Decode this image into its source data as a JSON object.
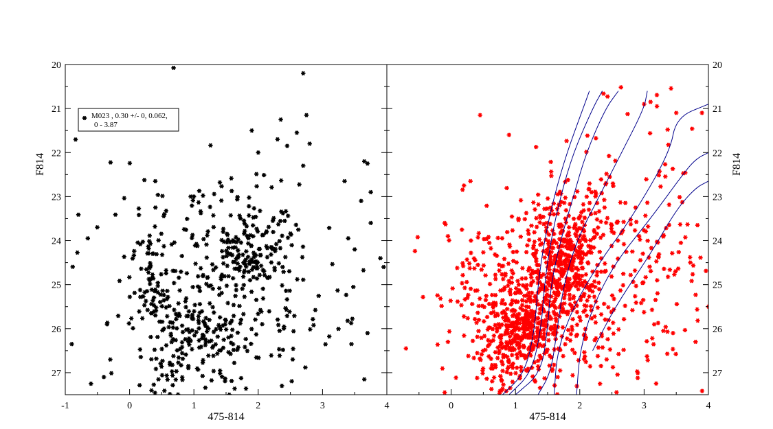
{
  "chart_data": [
    {
      "type": "scatter",
      "panel": "left",
      "xlabel": "475-814",
      "ylabel": "F814",
      "xlim": [
        -1,
        4
      ],
      "ylim": [
        27.5,
        20
      ],
      "y_inverted": true,
      "xticks": [
        "-1",
        "0",
        "1",
        "2",
        "3",
        "4"
      ],
      "yticks": [
        "20",
        "21",
        "22",
        "23",
        "24",
        "25",
        "26",
        "27"
      ],
      "marker_color": "#000000",
      "legend": {
        "position": "top-left",
        "line1": "M023  , 0.30 +/- 0, 0.062,",
        "line2": "0 - 3.87"
      },
      "highlight_points": [
        {
          "x": 2.7,
          "y": 20.2
        },
        {
          "x": 2.75,
          "y": 21.15
        },
        {
          "x": 2.35,
          "y": 21.25
        },
        {
          "x": 1.9,
          "y": 21.5
        },
        {
          "x": 2.6,
          "y": 21.55
        },
        {
          "x": 2.3,
          "y": 21.7
        },
        {
          "x": 2.8,
          "y": 21.8
        },
        {
          "x": 2.0,
          "y": 22.0
        },
        {
          "x": 2.45,
          "y": 21.85
        },
        {
          "x": 2.7,
          "y": 22.3
        },
        {
          "x": 3.65,
          "y": 22.2
        },
        {
          "x": 3.7,
          "y": 22.25
        },
        {
          "x": 0.4,
          "y": 22.65
        },
        {
          "x": 0.95,
          "y": 23.0
        },
        {
          "x": 1.0,
          "y": 23.0
        },
        {
          "x": 3.6,
          "y": 23.1
        },
        {
          "x": 3.75,
          "y": 22.9
        },
        {
          "x": 3.75,
          "y": 23.6
        },
        {
          "x": -0.65,
          "y": 23.95
        },
        {
          "x": 3.4,
          "y": 23.95
        },
        {
          "x": 3.5,
          "y": 24.2
        },
        {
          "x": 3.9,
          "y": 24.4
        },
        {
          "x": 3.95,
          "y": 24.6
        },
        {
          "x": 2.2,
          "y": 24.15
        },
        {
          "x": -0.9,
          "y": 26.35
        },
        {
          "x": -0.6,
          "y": 27.25
        },
        {
          "x": -0.4,
          "y": 27.1
        },
        {
          "x": -0.35,
          "y": 25.9
        },
        {
          "x": -0.3,
          "y": 26.7
        },
        {
          "x": 3.65,
          "y": 27.15
        },
        {
          "x": 3.45,
          "y": 26.35
        },
        {
          "x": 3.7,
          "y": 26.1
        },
        {
          "x": 1.55,
          "y": 27.5
        }
      ],
      "clusters": [
        {
          "cx": 1.85,
          "cy": 24.4,
          "sx": 0.2,
          "sy": 0.3,
          "n": 70
        },
        {
          "cx": 0.85,
          "cy": 26.1,
          "sx": 0.3,
          "sy": 0.35,
          "n": 75
        },
        {
          "cx": 0.35,
          "cy": 25.0,
          "sx": 0.2,
          "sy": 0.75,
          "n": 70
        },
        {
          "cx": 1.5,
          "cy": 25.8,
          "sx": 0.5,
          "sy": 0.8,
          "n": 120
        },
        {
          "cx": 1.9,
          "cy": 23.8,
          "sx": 0.5,
          "sy": 0.7,
          "n": 80
        },
        {
          "cx": 1.2,
          "cy": 24.5,
          "sx": 0.9,
          "sy": 1.1,
          "n": 120
        },
        {
          "cx": 2.8,
          "cy": 25.5,
          "sx": 0.5,
          "sy": 0.8,
          "n": 30
        },
        {
          "cx": 0.55,
          "cy": 27.0,
          "sx": 0.4,
          "sy": 0.3,
          "n": 30
        }
      ]
    },
    {
      "type": "scatter",
      "panel": "right",
      "xlabel": "475-814",
      "ylabel": "F814",
      "xlim": [
        -1,
        4
      ],
      "ylim": [
        27.5,
        20
      ],
      "y_inverted": true,
      "xticks": [
        "",
        "0",
        "1",
        "2",
        "3",
        "4"
      ],
      "yticks": [
        "20",
        "21",
        "22",
        "23",
        "24",
        "25",
        "26",
        "27"
      ],
      "marker_color": "#ff0000",
      "curve_color": "#00008b",
      "highlight_points": [
        {
          "x": 0.45,
          "y": 21.15
        },
        {
          "x": 3.0,
          "y": 20.9
        },
        {
          "x": 3.1,
          "y": 20.85
        },
        {
          "x": 3.2,
          "y": 20.95
        },
        {
          "x": 3.5,
          "y": 21.1
        },
        {
          "x": 3.9,
          "y": 21.1
        },
        {
          "x": 0.9,
          "y": 21.6
        },
        {
          "x": 0.2,
          "y": 22.75
        },
        {
          "x": 0.3,
          "y": 22.65
        },
        {
          "x": -0.1,
          "y": 23.6
        },
        {
          "x": -0.05,
          "y": 23.9
        },
        {
          "x": 4.0,
          "y": 25.5
        },
        {
          "x": -0.1,
          "y": 27.45
        },
        {
          "x": -0.05,
          "y": 26.3
        },
        {
          "x": 3.8,
          "y": 26.3
        },
        {
          "x": 3.3,
          "y": 26.05
        },
        {
          "x": 3.45,
          "y": 26.1
        }
      ],
      "clusters": [
        {
          "cx": 1.75,
          "cy": 24.5,
          "sx": 0.22,
          "sy": 0.55,
          "n": 250
        },
        {
          "cx": 1.1,
          "cy": 26.0,
          "sx": 0.3,
          "sy": 0.4,
          "n": 250
        },
        {
          "cx": 1.5,
          "cy": 25.3,
          "sx": 0.5,
          "sy": 0.85,
          "n": 320
        },
        {
          "cx": 0.5,
          "cy": 25.3,
          "sx": 0.4,
          "sy": 0.9,
          "n": 110
        },
        {
          "cx": 2.5,
          "cy": 24.8,
          "sx": 0.7,
          "sy": 1.3,
          "n": 150
        },
        {
          "cx": 2.0,
          "cy": 23.4,
          "sx": 0.4,
          "sy": 0.7,
          "n": 90
        },
        {
          "cx": 3.3,
          "cy": 23.5,
          "sx": 0.5,
          "sy": 1.8,
          "n": 60
        },
        {
          "cx": 1.0,
          "cy": 27.0,
          "sx": 0.4,
          "sy": 0.3,
          "n": 60
        }
      ],
      "isochrones": [
        {
          "points": [
            [
              0.8,
              27.5
            ],
            [
              1.15,
              27.0
            ],
            [
              1.3,
              26.0
            ],
            [
              1.35,
              25.0
            ],
            [
              1.45,
              24.0
            ],
            [
              1.6,
              23.0
            ],
            [
              1.8,
              22.0
            ],
            [
              2.05,
              21.0
            ],
            [
              2.15,
              20.6
            ]
          ]
        },
        {
          "points": [
            [
              0.9,
              27.5
            ],
            [
              1.25,
              27.0
            ],
            [
              1.4,
              26.0
            ],
            [
              1.45,
              25.0
            ],
            [
              1.55,
              24.0
            ],
            [
              1.7,
              23.0
            ],
            [
              1.9,
              22.0
            ],
            [
              2.2,
              21.0
            ],
            [
              2.35,
              20.6
            ]
          ]
        },
        {
          "points": [
            [
              1.0,
              27.5
            ],
            [
              1.4,
              27.0
            ],
            [
              1.5,
              26.0
            ],
            [
              1.55,
              25.0
            ],
            [
              1.7,
              24.0
            ],
            [
              1.9,
              23.0
            ],
            [
              2.1,
              22.0
            ],
            [
              2.4,
              21.0
            ],
            [
              2.6,
              20.6
            ]
          ]
        },
        {
          "points": [
            [
              1.35,
              27.5
            ],
            [
              1.55,
              27.0
            ],
            [
              1.65,
              26.0
            ],
            [
              1.75,
              25.0
            ],
            [
              1.95,
              24.0
            ],
            [
              2.3,
              23.0
            ],
            [
              2.65,
              22.0
            ],
            [
              3.0,
              21.0
            ],
            [
              3.05,
              20.6
            ]
          ]
        },
        {
          "points": [
            [
              1.6,
              27.5
            ],
            [
              1.65,
              26.5
            ],
            [
              1.9,
              25.5
            ],
            [
              2.3,
              24.5
            ],
            [
              2.8,
              23.5
            ],
            [
              3.4,
              22.0
            ],
            [
              3.5,
              21.2
            ],
            [
              4.0,
              20.9
            ]
          ]
        },
        {
          "points": [
            [
              1.95,
              27.5
            ],
            [
              2.0,
              26.5
            ],
            [
              2.2,
              25.5
            ],
            [
              2.55,
              24.5
            ],
            [
              3.1,
              23.5
            ],
            [
              3.6,
              22.5
            ],
            [
              3.8,
              22.15
            ],
            [
              4.0,
              22.0
            ]
          ]
        },
        {
          "points": [
            [
              2.2,
              26.5
            ],
            [
              2.55,
              25.5
            ],
            [
              3.1,
              24.3
            ],
            [
              3.5,
              23.3
            ],
            [
              3.8,
              22.8
            ],
            [
              4.0,
              22.65
            ]
          ]
        }
      ]
    }
  ]
}
